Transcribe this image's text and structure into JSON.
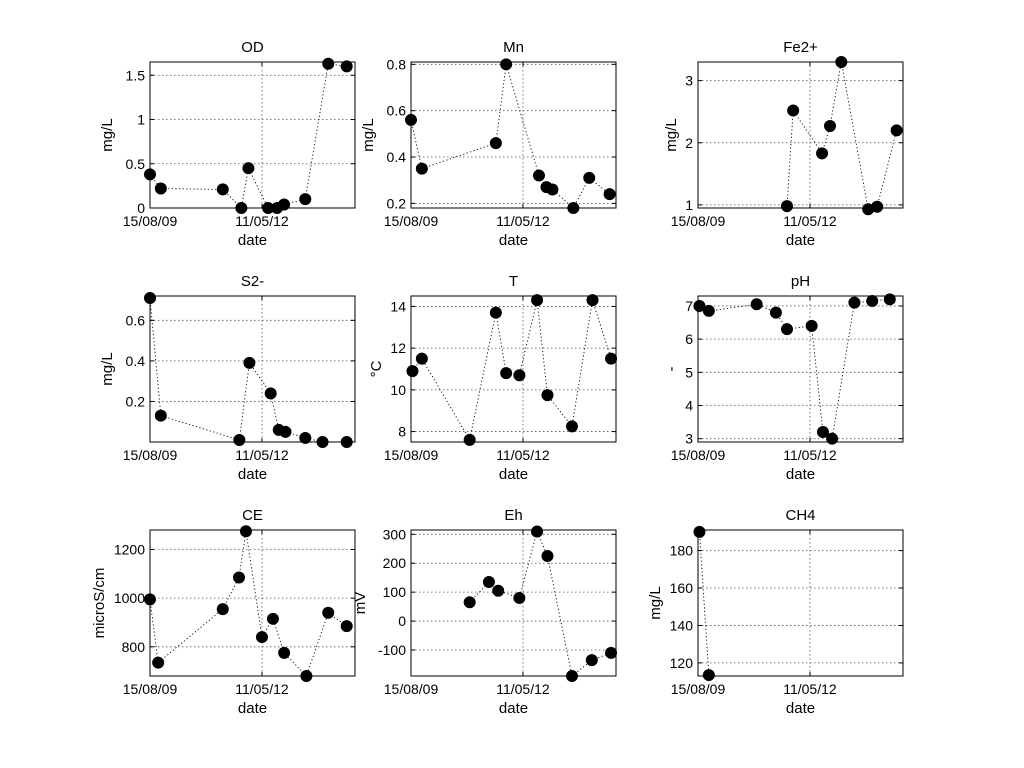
{
  "chart_data": [
    {
      "type": "scatter",
      "title": "OD",
      "xlabel": "date",
      "ylabel": "mg/L",
      "x_tick_labels": [
        "15/08/09",
        "11/05/12"
      ],
      "y_ticks": [
        0,
        0.5,
        1,
        1.5
      ],
      "y_tick_labels": [
        "0",
        "0.5",
        "1",
        "1.5"
      ],
      "xlim": [
        "15/08/09",
        "20/08/14"
      ],
      "ylim": [
        0,
        1.65
      ],
      "grid": true,
      "connect": true,
      "points": [
        {
          "x": "15/08/09",
          "y": 0.38
        },
        {
          "x": "20/11/09",
          "y": 0.22
        },
        {
          "x": "27/05/11",
          "y": 0.21
        },
        {
          "x": "09/11/11",
          "y": 0.0
        },
        {
          "x": "11/01/12",
          "y": 0.45
        },
        {
          "x": "05/07/12",
          "y": 0.0
        },
        {
          "x": "23/09/12",
          "y": 0.0
        },
        {
          "x": "25/11/12",
          "y": 0.04
        },
        {
          "x": "02/06/13",
          "y": 0.1
        },
        {
          "x": "24/12/13",
          "y": 1.63
        },
        {
          "x": "07/06/14",
          "y": 1.6
        }
      ]
    },
    {
      "type": "scatter",
      "title": "Mn",
      "xlabel": "date",
      "ylabel": "mg/L",
      "x_tick_labels": [
        "15/08/09",
        "11/05/12"
      ],
      "y_ticks": [
        0.2,
        0.4,
        0.6,
        0.8
      ],
      "y_tick_labels": [
        "0.2",
        "0.4",
        "0.6",
        "0.8"
      ],
      "xlim": [
        "15/08/09",
        "20/08/14"
      ],
      "ylim": [
        0.18,
        0.81
      ],
      "grid": true,
      "connect": true,
      "points": [
        {
          "x": "15/08/09",
          "y": 0.56
        },
        {
          "x": "20/11/09",
          "y": 0.35
        },
        {
          "x": "12/09/11",
          "y": 0.46
        },
        {
          "x": "13/12/11",
          "y": 0.8
        },
        {
          "x": "01/10/12",
          "y": 0.32
        },
        {
          "x": "07/12/12",
          "y": 0.27
        },
        {
          "x": "29/01/13",
          "y": 0.26
        },
        {
          "x": "04/08/13",
          "y": 0.18
        },
        {
          "x": "24/12/13",
          "y": 0.31
        },
        {
          "x": "24/06/14",
          "y": 0.24
        }
      ]
    },
    {
      "type": "scatter",
      "title": "Fe2+",
      "xlabel": "date",
      "ylabel": "mg/L",
      "x_tick_labels": [
        "15/08/09",
        "11/05/12"
      ],
      "y_ticks": [
        1,
        2,
        3
      ],
      "y_tick_labels": [
        "1",
        "2",
        "3"
      ],
      "xlim": [
        "15/08/09",
        "20/08/14"
      ],
      "ylim": [
        0.95,
        3.3
      ],
      "grid": true,
      "connect": true,
      "points": [
        {
          "x": "19/10/11",
          "y": 0.98
        },
        {
          "x": "13/12/11",
          "y": 2.52
        },
        {
          "x": "27/08/12",
          "y": 1.83
        },
        {
          "x": "06/11/12",
          "y": 2.27
        },
        {
          "x": "15/02/13",
          "y": 3.3
        },
        {
          "x": "13/10/13",
          "y": 0.93
        },
        {
          "x": "01/01/14",
          "y": 0.97
        },
        {
          "x": "24/06/14",
          "y": 2.2
        }
      ]
    },
    {
      "type": "scatter",
      "title": "S2-",
      "xlabel": "date",
      "ylabel": "mg/L",
      "x_tick_labels": [
        "15/08/09",
        "11/05/12"
      ],
      "y_ticks": [
        0.2,
        0.4,
        0.6
      ],
      "y_tick_labels": [
        "0.2",
        "0.4",
        "0.6"
      ],
      "xlim": [
        "15/08/09",
        "20/08/14"
      ],
      "ylim": [
        0,
        0.72
      ],
      "grid": true,
      "connect": true,
      "points": [
        {
          "x": "15/08/09",
          "y": 0.71
        },
        {
          "x": "20/11/09",
          "y": 0.13
        },
        {
          "x": "22/10/11",
          "y": 0.01
        },
        {
          "x": "20/01/12",
          "y": 0.39
        },
        {
          "x": "28/07/12",
          "y": 0.24
        },
        {
          "x": "08/10/12",
          "y": 0.06
        },
        {
          "x": "07/12/12",
          "y": 0.05
        },
        {
          "x": "02/06/13",
          "y": 0.02
        },
        {
          "x": "03/11/13",
          "y": 0.0
        },
        {
          "x": "07/06/14",
          "y": 0.0
        }
      ]
    },
    {
      "type": "scatter",
      "title": "T",
      "xlabel": "date",
      "ylabel": "°C",
      "x_tick_labels": [
        "15/08/09",
        "11/05/12"
      ],
      "y_ticks": [
        8,
        10,
        12,
        14
      ],
      "y_tick_labels": [
        "8",
        "10",
        "12",
        "14"
      ],
      "xlim": [
        "15/08/09",
        "20/08/14"
      ],
      "ylim": [
        7.5,
        14.5
      ],
      "grid": true,
      "connect": true,
      "points": [
        {
          "x": "28/08/09",
          "y": 10.9
        },
        {
          "x": "20/11/09",
          "y": 11.5
        },
        {
          "x": "21/01/11",
          "y": 7.6
        },
        {
          "x": "12/09/11",
          "y": 13.7
        },
        {
          "x": "13/12/11",
          "y": 10.8
        },
        {
          "x": "09/04/12",
          "y": 10.7
        },
        {
          "x": "14/09/12",
          "y": 14.3
        },
        {
          "x": "16/12/12",
          "y": 9.75
        },
        {
          "x": "23/07/13",
          "y": 8.25
        },
        {
          "x": "22/01/14",
          "y": 14.3
        },
        {
          "x": "07/07/14",
          "y": 11.5
        }
      ]
    },
    {
      "type": "scatter",
      "title": "pH",
      "xlabel": "date",
      "ylabel": "-",
      "x_tick_labels": [
        "15/08/09",
        "11/05/12"
      ],
      "y_ticks": [
        3,
        4,
        5,
        6,
        7
      ],
      "y_tick_labels": [
        "3",
        "4",
        "5",
        "6",
        "7"
      ],
      "xlim": [
        "15/08/09",
        "20/08/14"
      ],
      "ylim": [
        2.9,
        7.3
      ],
      "grid": true,
      "connect": true,
      "points": [
        {
          "x": "28/08/09",
          "y": 7.0
        },
        {
          "x": "20/11/09",
          "y": 6.85
        },
        {
          "x": "21/01/11",
          "y": 7.05
        },
        {
          "x": "12/07/11",
          "y": 6.8
        },
        {
          "x": "19/10/11",
          "y": 6.3
        },
        {
          "x": "26/05/12",
          "y": 6.4
        },
        {
          "x": "04/09/12",
          "y": 3.2
        },
        {
          "x": "25/11/12",
          "y": 3.0
        },
        {
          "x": "12/06/13",
          "y": 7.1
        },
        {
          "x": "18/11/13",
          "y": 7.15
        },
        {
          "x": "24/04/14",
          "y": 7.2
        }
      ]
    },
    {
      "type": "scatter",
      "title": "CE",
      "xlabel": "date",
      "ylabel": "microS/cm",
      "x_tick_labels": [
        "15/08/09",
        "11/05/12"
      ],
      "y_ticks": [
        800,
        1000,
        1200
      ],
      "y_tick_labels": [
        "800",
        "1000",
        "1200"
      ],
      "xlim": [
        "15/08/09",
        "20/08/14"
      ],
      "ylim": [
        680,
        1280
      ],
      "grid": true,
      "connect": true,
      "points": [
        {
          "x": "15/08/09",
          "y": 995
        },
        {
          "x": "27/10/09",
          "y": 735
        },
        {
          "x": "27/05/11",
          "y": 955
        },
        {
          "x": "19/10/11",
          "y": 1085
        },
        {
          "x": "20/12/11",
          "y": 1275
        },
        {
          "x": "11/05/12",
          "y": 840
        },
        {
          "x": "17/08/12",
          "y": 915
        },
        {
          "x": "25/11/12",
          "y": 775
        },
        {
          "x": "12/06/13",
          "y": 680
        },
        {
          "x": "24/12/13",
          "y": 940
        },
        {
          "x": "07/06/14",
          "y": 885
        }
      ]
    },
    {
      "type": "scatter",
      "title": "Eh",
      "xlabel": "date",
      "ylabel": "mV",
      "x_tick_labels": [
        "15/08/09",
        "11/05/12"
      ],
      "y_ticks": [
        -100,
        0,
        100,
        200,
        300
      ],
      "y_tick_labels": [
        "-100",
        "0",
        "100",
        "200",
        "300"
      ],
      "xlim": [
        "15/08/09",
        "20/08/14"
      ],
      "ylim": [
        -190,
        315
      ],
      "grid": true,
      "connect": true,
      "points": [
        {
          "x": "21/01/11",
          "y": 65
        },
        {
          "x": "12/07/11",
          "y": 135
        },
        {
          "x": "03/10/11",
          "y": 105
        },
        {
          "x": "09/04/12",
          "y": 80
        },
        {
          "x": "14/09/12",
          "y": 310
        },
        {
          "x": "16/12/12",
          "y": 225
        },
        {
          "x": "23/07/13",
          "y": -190
        },
        {
          "x": "16/01/14",
          "y": -135
        },
        {
          "x": "07/07/14",
          "y": -110
        }
      ]
    },
    {
      "type": "scatter",
      "title": "CH4",
      "xlabel": "date",
      "ylabel": "mg/L",
      "x_tick_labels": [
        "15/08/09",
        "11/05/12"
      ],
      "y_ticks": [
        120,
        140,
        160,
        180
      ],
      "y_tick_labels": [
        "120",
        "140",
        "160",
        "180"
      ],
      "xlim": [
        "15/08/09",
        "20/08/14"
      ],
      "ylim": [
        113,
        191
      ],
      "grid": true,
      "connect": true,
      "points": [
        {
          "x": "28/08/09",
          "y": 190
        },
        {
          "x": "20/11/09",
          "y": 113.5
        }
      ]
    }
  ]
}
